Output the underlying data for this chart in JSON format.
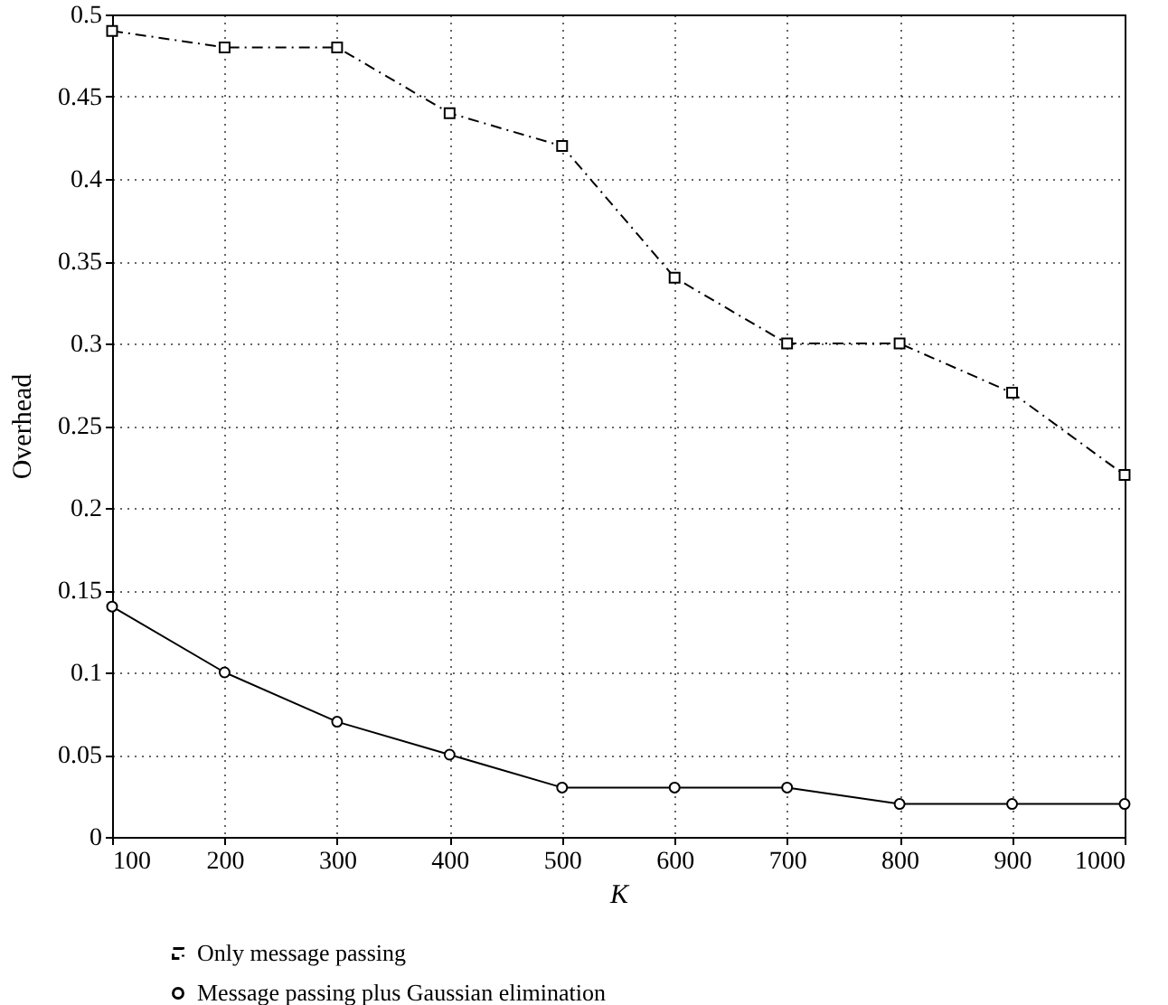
{
  "chart_data": {
    "type": "line",
    "xlabel": "K",
    "ylabel": "Overhead",
    "x": [
      100,
      200,
      300,
      400,
      500,
      600,
      700,
      800,
      900,
      1000
    ],
    "series": [
      {
        "name": "Only message passing",
        "color": "#000000",
        "marker": "square",
        "line_style": "dashed",
        "values": [
          0.49,
          0.48,
          0.48,
          0.44,
          0.42,
          0.34,
          0.3,
          0.3,
          0.27,
          0.22
        ]
      },
      {
        "name": "Message passing plus Gaussian elimination",
        "color": "#000000",
        "marker": "circle",
        "line_style": "solid",
        "values": [
          0.14,
          0.1,
          0.07,
          0.05,
          0.03,
          0.03,
          0.03,
          0.02,
          0.02,
          0.02
        ]
      }
    ],
    "xlim": [
      100,
      1000
    ],
    "xticks": [
      100,
      200,
      300,
      400,
      500,
      600,
      700,
      800,
      900,
      1000
    ],
    "ylim": [
      0,
      0.5
    ],
    "yticks": [
      0,
      0.05,
      0.1,
      0.15,
      0.2,
      0.25,
      0.3,
      0.35,
      0.4,
      0.45,
      0.5
    ],
    "grid": true,
    "legend": "bottom"
  }
}
